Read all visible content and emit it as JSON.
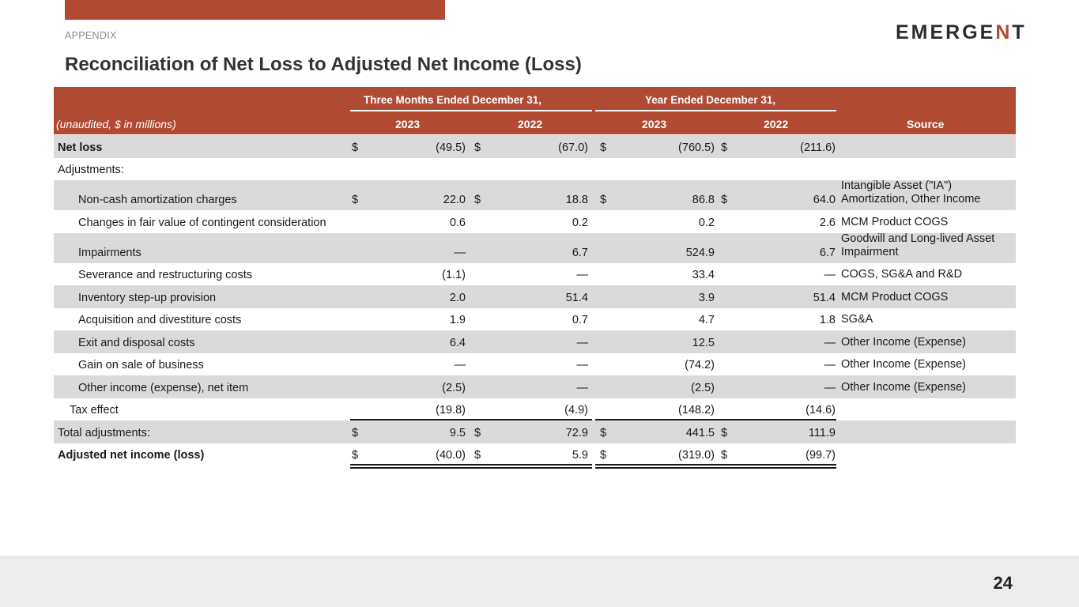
{
  "header": {
    "section": "APPENDIX",
    "logo": "EMERGENT",
    "title": "Reconciliation of Net Loss to Adjusted Net Income (Loss)"
  },
  "table": {
    "unit_label": "(unaudited, $ in millions)",
    "group1": "Three Months Ended December 31,",
    "group2": "Year Ended December 31,",
    "years": [
      "2023",
      "2022",
      "2023",
      "2022"
    ],
    "source_header": "Source",
    "rows": [
      {
        "label": "Net loss",
        "v": [
          "(49.5)",
          "(67.0)",
          "(760.5)",
          "(211.6)"
        ],
        "dollar": true,
        "source": "",
        "shaded": true,
        "bold": true,
        "indent": 0
      },
      {
        "label": "Adjustments:",
        "v": [
          "",
          "",
          "",
          ""
        ],
        "dollar": false,
        "source": "",
        "shaded": false,
        "bold": false,
        "indent": 0
      },
      {
        "label": "Non-cash amortization charges",
        "v": [
          "22.0",
          "18.8",
          "86.8",
          "64.0"
        ],
        "dollar": true,
        "source": "Intangible Asset (\"IA\") Amortization, Other Income",
        "shaded": true,
        "bold": false,
        "indent": 1,
        "tall": true
      },
      {
        "label": "Changes in fair value of contingent consideration",
        "v": [
          "0.6",
          "0.2",
          "0.2",
          "2.6"
        ],
        "dollar": false,
        "source": "MCM Product COGS",
        "shaded": false,
        "bold": false,
        "indent": 1
      },
      {
        "label": "Impairments",
        "v": [
          "—",
          "6.7",
          "524.9",
          "6.7"
        ],
        "dollar": false,
        "source": "Goodwill and Long-lived Asset Impairment",
        "shaded": true,
        "bold": false,
        "indent": 1,
        "tall": true
      },
      {
        "label": "Severance and restructuring costs",
        "v": [
          "(1.1)",
          "—",
          "33.4",
          "—"
        ],
        "dollar": false,
        "source": "COGS, SG&A and R&D",
        "shaded": false,
        "bold": false,
        "indent": 1
      },
      {
        "label": "Inventory step-up provision",
        "v": [
          "2.0",
          "51.4",
          "3.9",
          "51.4"
        ],
        "dollar": false,
        "source": "MCM Product COGS",
        "shaded": true,
        "bold": false,
        "indent": 1
      },
      {
        "label": "Acquisition and divestiture costs",
        "v": [
          "1.9",
          "0.7",
          "4.7",
          "1.8"
        ],
        "dollar": false,
        "source": "SG&A",
        "shaded": false,
        "bold": false,
        "indent": 1
      },
      {
        "label": "Exit and disposal costs",
        "v": [
          "6.4",
          "—",
          "12.5",
          "—"
        ],
        "dollar": false,
        "source": "Other Income (Expense)",
        "shaded": true,
        "bold": false,
        "indent": 1
      },
      {
        "label": "Gain on sale of business",
        "v": [
          "—",
          "—",
          "(74.2)",
          "—"
        ],
        "dollar": false,
        "source": "Other Income (Expense)",
        "shaded": false,
        "bold": false,
        "indent": 1
      },
      {
        "label": "Other income (expense), net item",
        "v": [
          "(2.5)",
          "—",
          "(2.5)",
          "—"
        ],
        "dollar": false,
        "source": "Other Income (Expense)",
        "shaded": true,
        "bold": false,
        "indent": 1
      },
      {
        "label": "Tax effect",
        "v": [
          "(19.8)",
          "(4.9)",
          "(148.2)",
          "(14.6)"
        ],
        "dollar": false,
        "source": "",
        "shaded": false,
        "bold": false,
        "indent": 2,
        "underline": "single"
      },
      {
        "label": "Total adjustments:",
        "v": [
          "9.5",
          "72.9",
          "441.5",
          "111.9"
        ],
        "dollar": true,
        "source": "",
        "shaded": true,
        "bold": false,
        "indent": 0
      },
      {
        "label": "Adjusted net income (loss)",
        "v": [
          "(40.0)",
          "5.9",
          "(319.0)",
          "(99.7)"
        ],
        "dollar": true,
        "source": "",
        "shaded": false,
        "bold": true,
        "indent": 0,
        "underline": "double"
      }
    ],
    "dollar_sign": "$"
  },
  "footer": {
    "page": "24"
  },
  "colors": {
    "brand": "#b04a33",
    "shade": "#dadada"
  }
}
